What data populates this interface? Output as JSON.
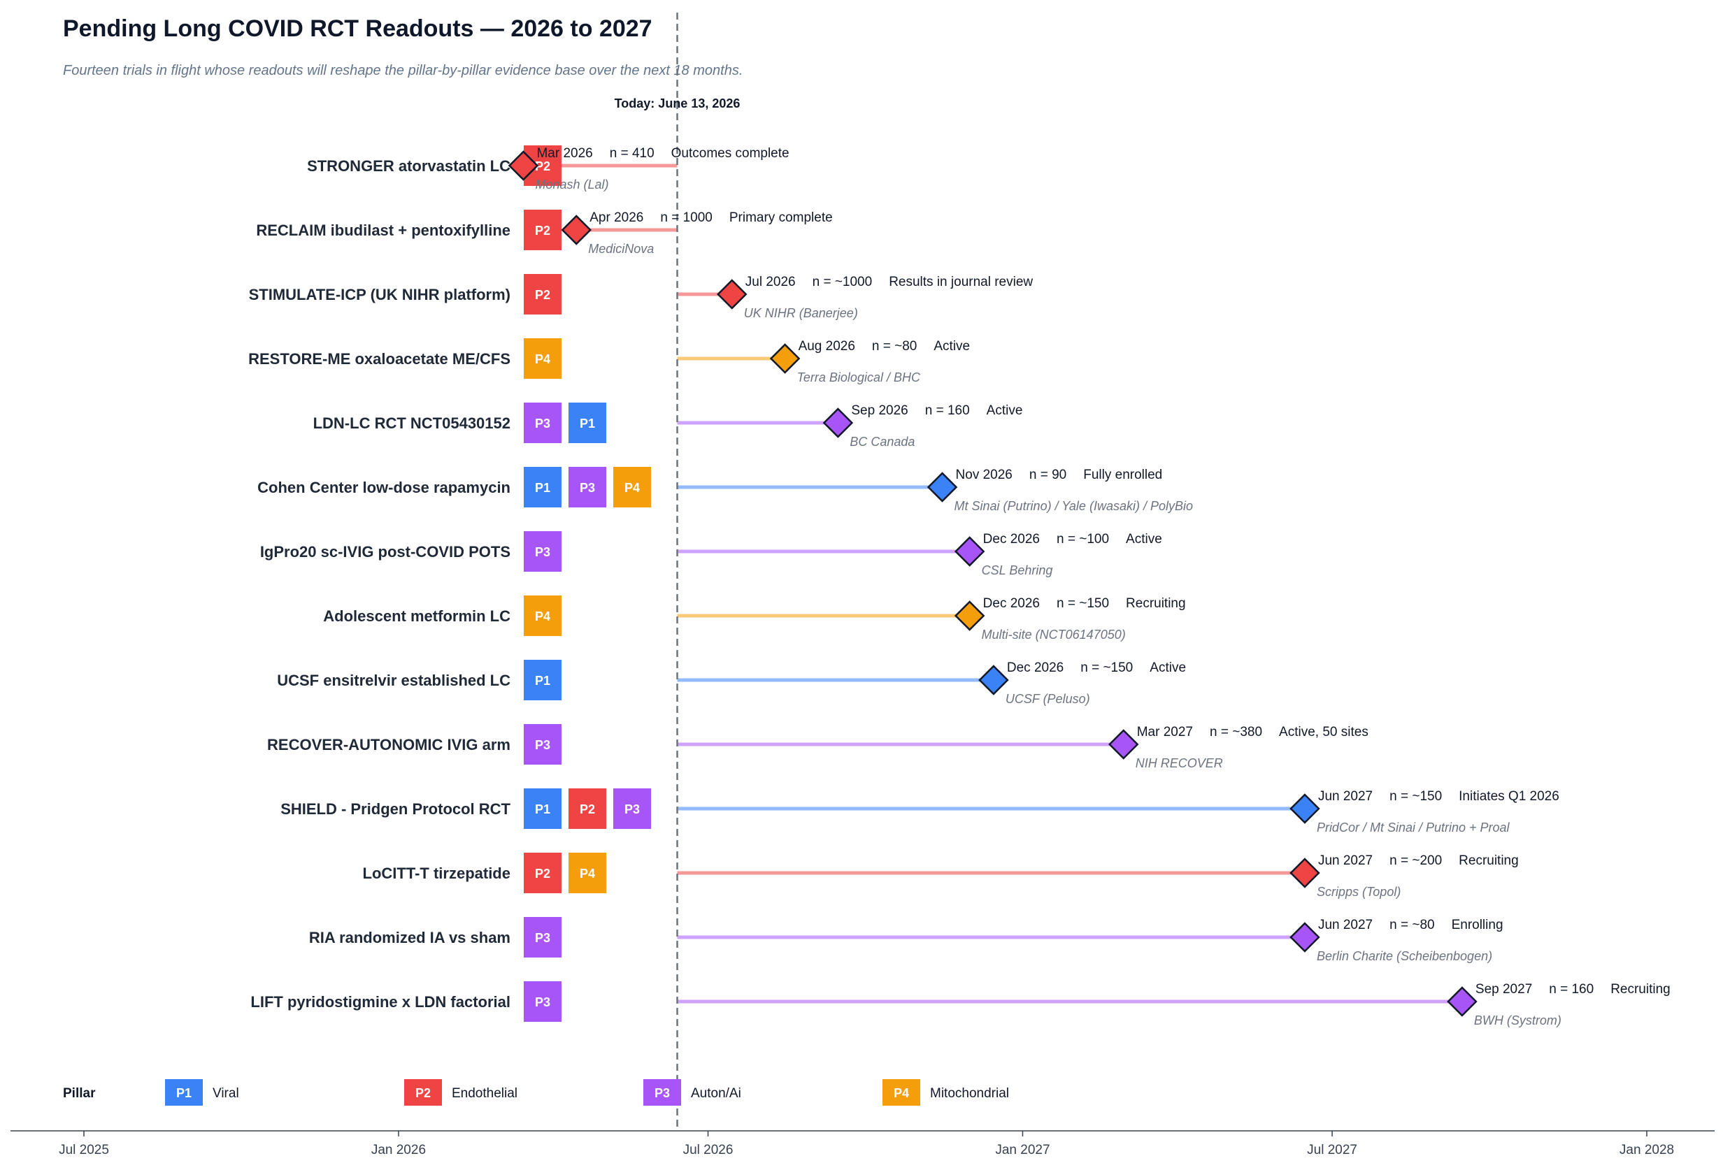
{
  "chart_data": {
    "type": "timeline",
    "title": "Pending Long COVID RCT Readouts — 2026 to 2027",
    "subtitle": "Fourteen trials in flight whose readouts will reshape the pillar-by-pillar evidence base over the next 18 months.",
    "today": {
      "date": "2026-06-13",
      "label": "Today: June 13, 2026"
    },
    "x_axis": {
      "range": [
        "2025-06-15",
        "2028-02-15"
      ],
      "ticks": [
        {
          "date": "2025-07-01",
          "label": "Jul 2025"
        },
        {
          "date": "2026-01-01",
          "label": "Jan 2026"
        },
        {
          "date": "2026-07-01",
          "label": "Jul 2026"
        },
        {
          "date": "2027-01-01",
          "label": "Jan 2027"
        },
        {
          "date": "2027-07-01",
          "label": "Jul 2027"
        },
        {
          "date": "2028-01-01",
          "label": "Jan 2028"
        }
      ]
    },
    "pillars": {
      "P1": {
        "label": "Viral",
        "color": "#3b82f6"
      },
      "P2": {
        "label": "Endothelial",
        "color": "#ef4444"
      },
      "P3": {
        "label": "Auton/Ai",
        "color": "#a855f7"
      },
      "P4": {
        "label": "Mitochondrial",
        "color": "#f59e0b"
      }
    },
    "legend": {
      "title": "Pillar",
      "order": [
        "P1",
        "P2",
        "P3",
        "P4"
      ]
    },
    "trials": [
      {
        "name": "STRONGER atorvastatin LC",
        "pillars": [
          "P2"
        ],
        "readout": "2026-03-15",
        "date_label": "Mar 2026",
        "n": "n = 410",
        "status": "Outcomes complete",
        "sponsor": "Monash (Lal)",
        "color_pillar": "P2"
      },
      {
        "name": "RECLAIM ibudilast + pentoxifylline",
        "pillars": [
          "P2"
        ],
        "readout": "2026-04-15",
        "date_label": "Apr 2026",
        "n": "n = 1000",
        "status": "Primary complete",
        "sponsor": "MediciNova",
        "color_pillar": "P2"
      },
      {
        "name": "STIMULATE-ICP (UK NIHR platform)",
        "pillars": [
          "P2"
        ],
        "readout": "2026-07-15",
        "date_label": "Jul 2026",
        "n": "n = ~1000",
        "status": "Results in journal review",
        "sponsor": "UK NIHR (Banerjee)",
        "color_pillar": "P2"
      },
      {
        "name": "RESTORE-ME oxaloacetate ME/CFS",
        "pillars": [
          "P4"
        ],
        "readout": "2026-08-15",
        "date_label": "Aug 2026",
        "n": "n = ~80",
        "status": "Active",
        "sponsor": "Terra Biological / BHC",
        "color_pillar": "P4"
      },
      {
        "name": "LDN-LC RCT NCT05430152",
        "pillars": [
          "P3",
          "P1"
        ],
        "readout": "2026-09-15",
        "date_label": "Sep 2026",
        "n": "n = 160",
        "status": "Active",
        "sponsor": "BC Canada",
        "color_pillar": "P3"
      },
      {
        "name": "Cohen Center low-dose rapamycin",
        "pillars": [
          "P1",
          "P3",
          "P4"
        ],
        "readout": "2026-11-15",
        "date_label": "Nov 2026",
        "n": "n = 90",
        "status": "Fully enrolled",
        "sponsor": "Mt Sinai (Putrino) / Yale (Iwasaki) / PolyBio",
        "color_pillar": "P1"
      },
      {
        "name": "IgPro20 sc-IVIG post-COVID POTS",
        "pillars": [
          "P3"
        ],
        "readout": "2026-12-01",
        "date_label": "Dec 2026",
        "n": "n = ~100",
        "status": "Active",
        "sponsor": "CSL Behring",
        "color_pillar": "P3"
      },
      {
        "name": "Adolescent metformin LC",
        "pillars": [
          "P4"
        ],
        "readout": "2026-12-01",
        "date_label": "Dec 2026",
        "n": "n = ~150",
        "status": "Recruiting",
        "sponsor": "Multi-site (NCT06147050)",
        "color_pillar": "P4"
      },
      {
        "name": "UCSF ensitrelvir established LC",
        "pillars": [
          "P1"
        ],
        "readout": "2026-12-15",
        "date_label": "Dec 2026",
        "n": "n = ~150",
        "status": "Active",
        "sponsor": "UCSF (Peluso)",
        "color_pillar": "P1"
      },
      {
        "name": "RECOVER-AUTONOMIC IVIG arm",
        "pillars": [
          "P3"
        ],
        "readout": "2027-03-01",
        "date_label": "Mar 2027",
        "n": "n = ~380",
        "status": "Active, 50 sites",
        "sponsor": "NIH RECOVER",
        "color_pillar": "P3"
      },
      {
        "name": "SHIELD - Pridgen Protocol RCT",
        "pillars": [
          "P1",
          "P2",
          "P3"
        ],
        "readout": "2027-06-15",
        "date_label": "Jun 2027",
        "n": "n = ~150",
        "status": "Initiates Q1 2026",
        "sponsor": "PridCor / Mt Sinai / Putrino + Proal",
        "color_pillar": "P1"
      },
      {
        "name": "LoCITT-T tirzepatide",
        "pillars": [
          "P2",
          "P4"
        ],
        "readout": "2027-06-15",
        "date_label": "Jun 2027",
        "n": "n = ~200",
        "status": "Recruiting",
        "sponsor": "Scripps (Topol)",
        "color_pillar": "P2"
      },
      {
        "name": "RIA randomized IA vs sham",
        "pillars": [
          "P3"
        ],
        "readout": "2027-06-15",
        "date_label": "Jun 2027",
        "n": "n = ~80",
        "status": "Enrolling",
        "sponsor": "Berlin Charite (Scheibenbogen)",
        "color_pillar": "P3"
      },
      {
        "name": "LIFT pyridostigmine x LDN factorial",
        "pillars": [
          "P3"
        ],
        "readout": "2027-09-15",
        "date_label": "Sep 2027",
        "n": "n = 160",
        "status": "Recruiting",
        "sponsor": "BWH (Systrom)",
        "color_pillar": "P3"
      }
    ]
  }
}
